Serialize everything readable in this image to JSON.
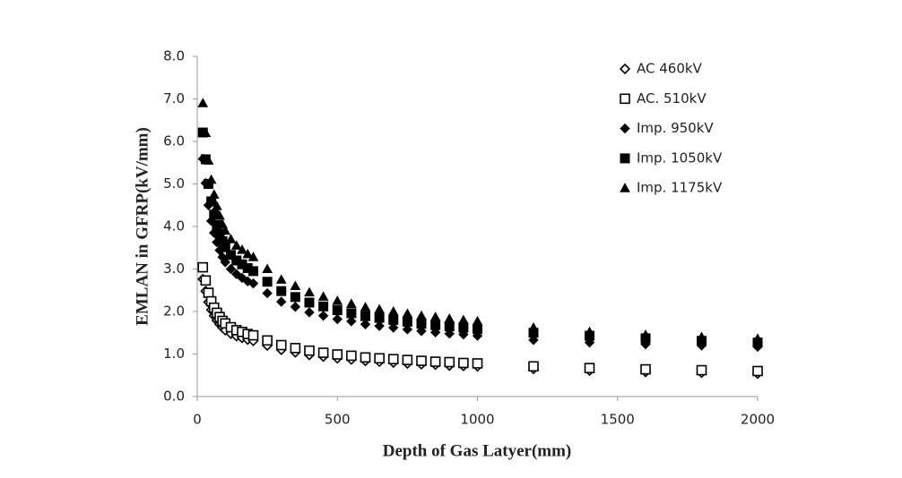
{
  "chart_data": {
    "type": "scatter",
    "x_label": "Depth of Gas Latyer(mm)",
    "y_label": "EMLAN in GFRP(kV/mm)",
    "xlim": [
      0,
      2000
    ],
    "xticks": [
      0,
      500,
      1000,
      1500,
      2000
    ],
    "ylim": [
      0,
      8
    ],
    "yticks": [
      {
        "value": 0,
        "label": "0.0"
      },
      {
        "value": 1,
        "label": "1.0"
      },
      {
        "value": 2,
        "label": "2.0"
      },
      {
        "value": 3,
        "label": "3.0"
      },
      {
        "value": 4,
        "label": "4.0"
      },
      {
        "value": 5,
        "label": "5.0"
      },
      {
        "value": 6,
        "label": "6.0"
      },
      {
        "value": 7,
        "label": "7.0"
      },
      {
        "value": 8,
        "label": "8.0"
      }
    ],
    "grid": false,
    "legend": "upper right",
    "x": [
      20,
      30,
      40,
      50,
      60,
      70,
      80,
      90,
      100,
      120,
      140,
      160,
      180,
      200,
      250,
      300,
      350,
      400,
      450,
      500,
      550,
      600,
      650,
      700,
      750,
      800,
      850,
      900,
      950,
      1000,
      1200,
      1400,
      1600,
      1800,
      2000
    ],
    "series": [
      {
        "name": "AC 460kV",
        "color": "#000000",
        "marker": "diamond-open",
        "values": [
          2.76,
          2.48,
          2.22,
          2.04,
          1.9,
          1.79,
          1.7,
          1.62,
          1.56,
          1.48,
          1.42,
          1.38,
          1.34,
          1.31,
          1.2,
          1.1,
          1.04,
          0.98,
          0.94,
          0.9,
          0.87,
          0.84,
          0.82,
          0.8,
          0.78,
          0.76,
          0.75,
          0.73,
          0.72,
          0.71,
          0.65,
          0.61,
          0.58,
          0.56,
          0.54
        ]
      },
      {
        "name": "AC. 510kV",
        "color": "#000000",
        "marker": "square-open",
        "values": [
          3.04,
          2.73,
          2.44,
          2.24,
          2.09,
          1.97,
          1.87,
          1.78,
          1.72,
          1.63,
          1.56,
          1.52,
          1.47,
          1.44,
          1.32,
          1.21,
          1.14,
          1.08,
          1.03,
          0.99,
          0.96,
          0.92,
          0.9,
          0.88,
          0.86,
          0.84,
          0.82,
          0.81,
          0.79,
          0.78,
          0.71,
          0.67,
          0.64,
          0.62,
          0.6
        ]
      },
      {
        "name": "Imp. 950kV",
        "color": "#000000",
        "marker": "diamond",
        "values": [
          5.59,
          5.02,
          4.5,
          4.13,
          3.85,
          3.63,
          3.44,
          3.28,
          3.16,
          3.0,
          2.88,
          2.79,
          2.71,
          2.66,
          2.43,
          2.23,
          2.11,
          1.98,
          1.9,
          1.82,
          1.77,
          1.7,
          1.66,
          1.62,
          1.58,
          1.54,
          1.51,
          1.48,
          1.46,
          1.43,
          1.33,
          1.27,
          1.23,
          1.2,
          1.17
        ]
      },
      {
        "name": "Imp. 1050kV",
        "color": "#000000",
        "marker": "square",
        "values": [
          6.21,
          5.58,
          5.0,
          4.59,
          4.28,
          4.03,
          3.83,
          3.65,
          3.51,
          3.33,
          3.2,
          3.11,
          3.02,
          2.95,
          2.7,
          2.48,
          2.34,
          2.21,
          2.12,
          2.03,
          1.96,
          1.89,
          1.85,
          1.8,
          1.76,
          1.71,
          1.68,
          1.65,
          1.62,
          1.59,
          1.5,
          1.43,
          1.37,
          1.31,
          1.27
        ]
      },
      {
        "name": "Imp. 1175kV",
        "color": "#000000",
        "marker": "triangle",
        "values": [
          6.9,
          6.2,
          5.55,
          5.1,
          4.75,
          4.48,
          4.25,
          4.05,
          3.9,
          3.7,
          3.55,
          3.45,
          3.35,
          3.28,
          3.0,
          2.75,
          2.6,
          2.45,
          2.35,
          2.25,
          2.18,
          2.1,
          2.05,
          2.0,
          1.95,
          1.9,
          1.87,
          1.83,
          1.8,
          1.77,
          1.62,
          1.52,
          1.45,
          1.4,
          1.36
        ]
      }
    ]
  }
}
